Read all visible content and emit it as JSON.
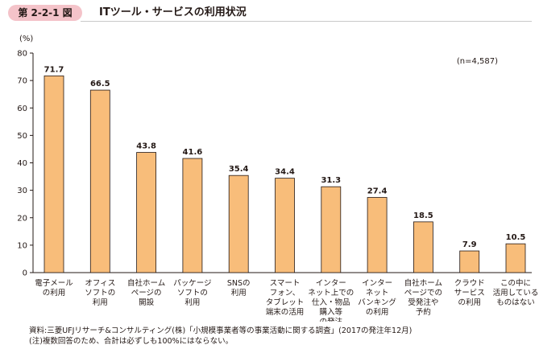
{
  "figure": {
    "number": "第 2-2-1 図",
    "title": "ITツール・サービスの利用状況"
  },
  "chart_data": {
    "type": "bar",
    "y_unit": "(%)",
    "sample_note": "(n=4,587)",
    "ylim": [
      0,
      80
    ],
    "yticks": [
      0,
      10,
      20,
      30,
      40,
      50,
      60,
      70,
      80
    ],
    "grid": false,
    "bar_color": "#f8bd7a",
    "bar_edge_color": "#231815",
    "categories": [
      [
        "電子メール",
        "の利用"
      ],
      [
        "オフィス",
        "ソフトの",
        "利用"
      ],
      [
        "自社ホーム",
        "ページの",
        "開設"
      ],
      [
        "パッケージ",
        "ソフトの",
        "利用"
      ],
      [
        "SNSの",
        "利用"
      ],
      [
        "スマート",
        "フォン、",
        "タブレット",
        "端末の活用"
      ],
      [
        "インター",
        "ネット上での",
        "仕入・物品",
        "購入等",
        "の発注"
      ],
      [
        "インター",
        "ネット",
        "バンキング",
        "の利用"
      ],
      [
        "自社ホーム",
        "ページでの",
        "受発注や",
        "予約"
      ],
      [
        "クラウド",
        "サービス",
        "の利用"
      ],
      [
        "この中に",
        "活用している",
        "ものはない"
      ]
    ],
    "values": [
      71.7,
      66.5,
      43.8,
      41.6,
      35.4,
      34.4,
      31.3,
      27.4,
      18.5,
      7.9,
      10.5
    ],
    "value_labels": [
      "71.7",
      "66.5",
      "43.8",
      "41.6",
      "35.4",
      "34.4",
      "31.3",
      "27.4",
      "18.5",
      "7.9",
      "10.5"
    ]
  },
  "notes": {
    "source": "資料:三菱UFJリサーチ&コンサルティング(株)「小規模事業者等の事業活動に関する調査」(2017の発注年12月)",
    "note": "(注)複数回答のため、合計は必ずしも100%にはならない。"
  }
}
